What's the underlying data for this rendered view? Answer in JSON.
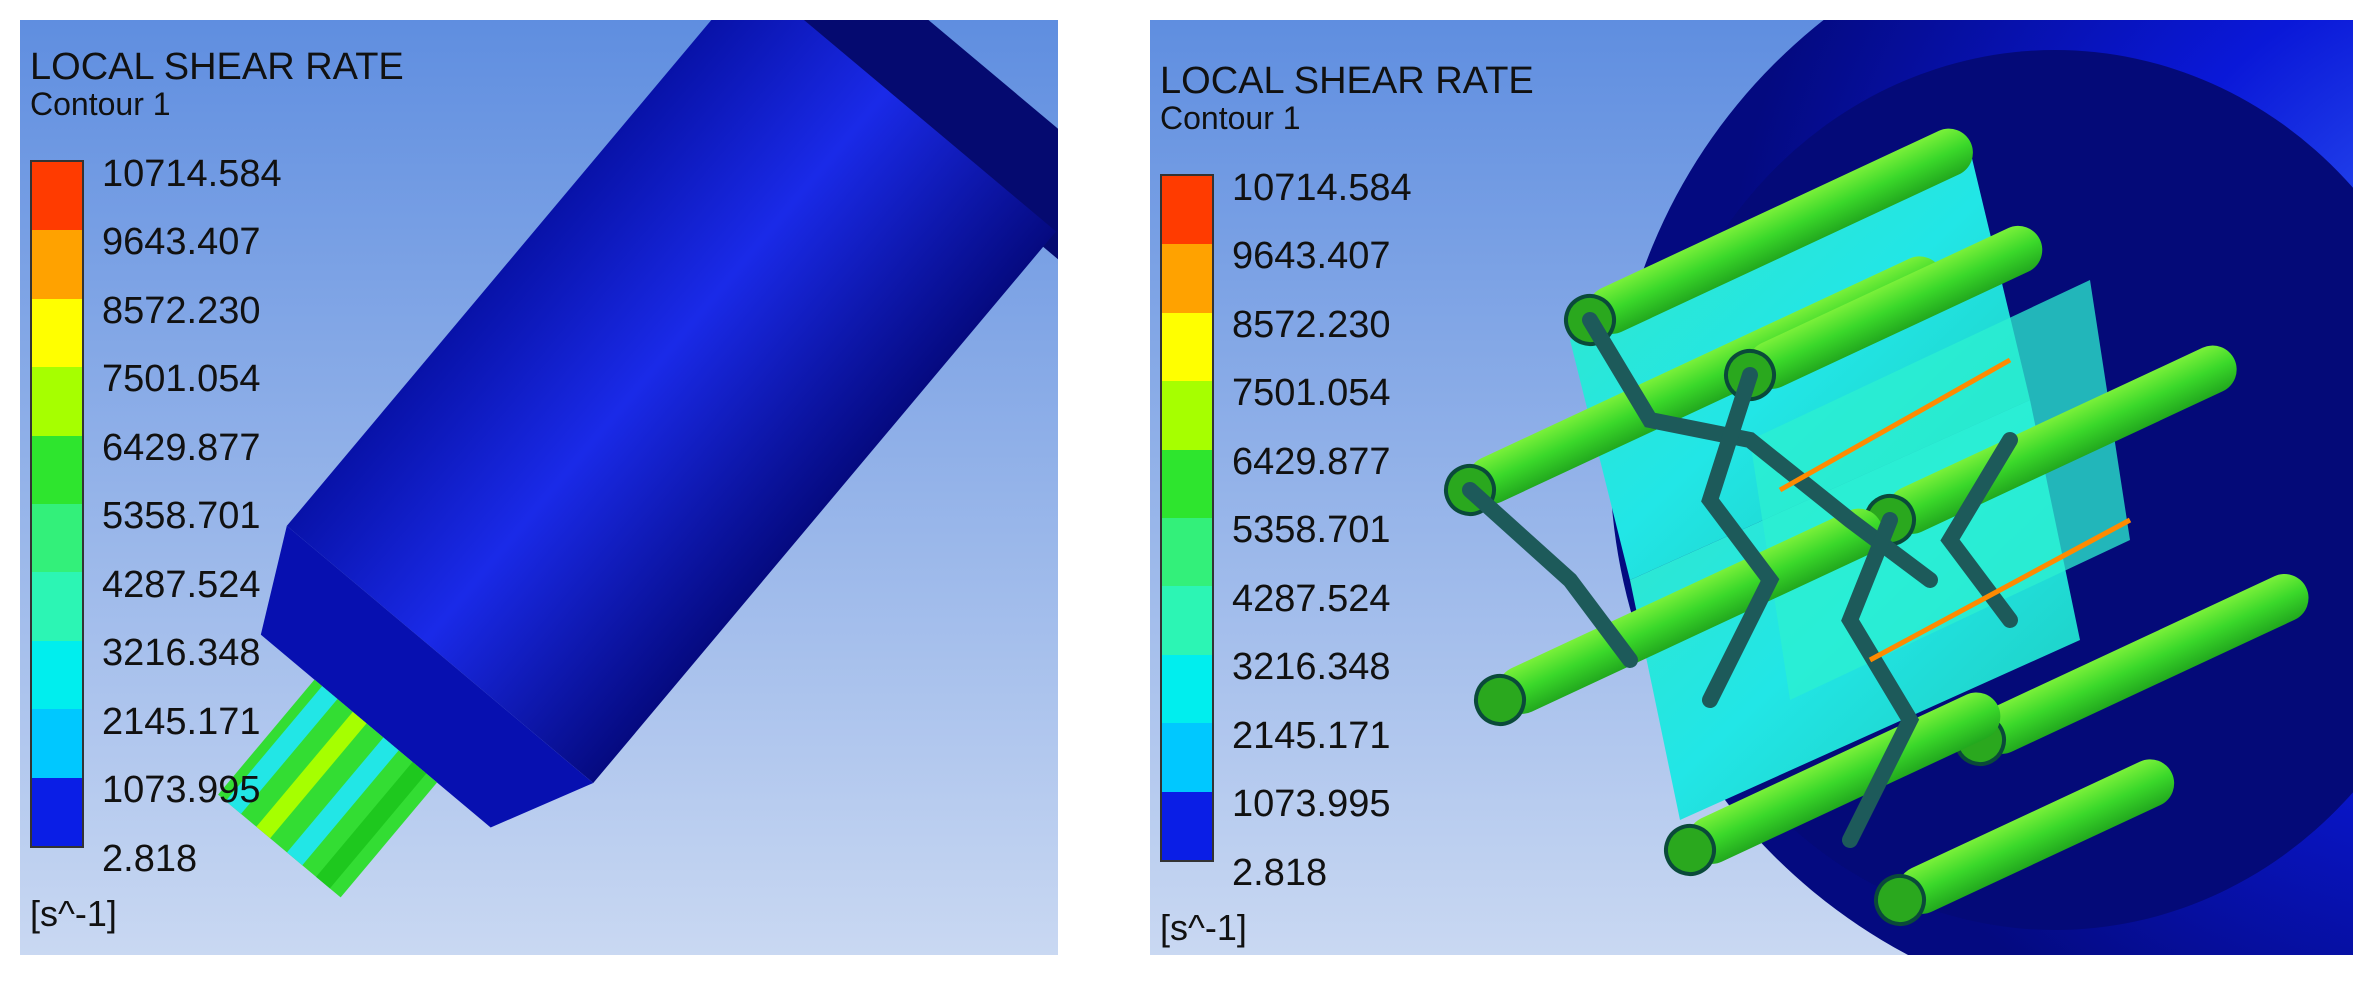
{
  "panels": [
    {
      "legend": {
        "title": "LOCAL SHEAR RATE",
        "subtitle": "Contour 1",
        "ticks": [
          "10714.584",
          "9643.407",
          "8572.230",
          "7501.054",
          "6429.877",
          "5358.701",
          "4287.524",
          "3216.348",
          "2145.171",
          "1073.995",
          "2.818"
        ],
        "unit": "[s^-1]"
      }
    },
    {
      "legend": {
        "title": "LOCAL SHEAR RATE",
        "subtitle": "Contour 1",
        "ticks": [
          "10714.584",
          "9643.407",
          "8572.230",
          "7501.054",
          "6429.877",
          "5358.701",
          "4287.524",
          "3216.348",
          "2145.171",
          "1073.995",
          "2.818"
        ],
        "unit": "[s^-1]"
      }
    }
  ],
  "colormap": [
    "#ff3b00",
    "#ffa200",
    "#ffff00",
    "#a6ff00",
    "#2ee52e",
    "#33f07a",
    "#2cf5b4",
    "#00eeee",
    "#00c8ff",
    "#0090ff",
    "#0a1ee6"
  ],
  "colors": {
    "background_top": "#5f8ee0",
    "background_bottom": "#c9d8f2",
    "geometry_blue": "#0a14cc",
    "geometry_dark": "#050a7a",
    "mixer_green": "#44dd22",
    "mixer_cyan": "#22e6e6"
  }
}
